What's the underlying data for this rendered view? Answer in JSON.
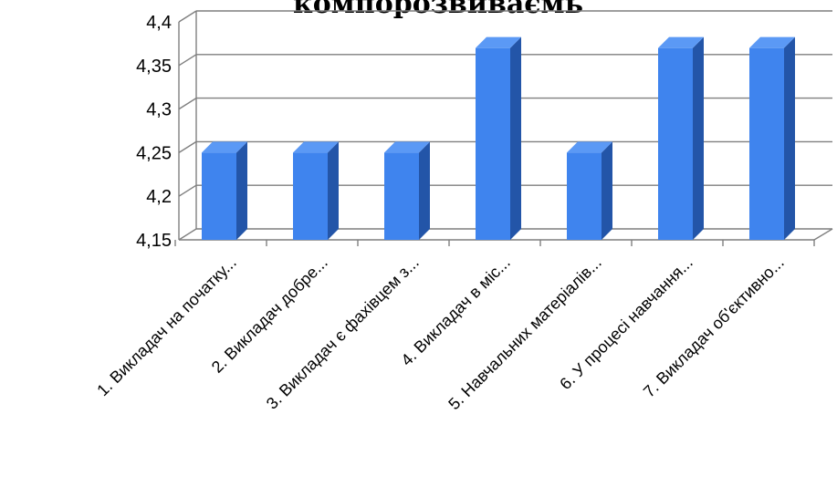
{
  "chart_data": {
    "type": "bar",
    "title": "компорозвиваємь",
    "categories": [
      "1. Викладач на початку...",
      "2. Викладач добре...",
      "3. Викладач є фахівцем з...",
      "4. Викладач в міс...",
      "5. Навчальних матеріалів...",
      "6. У процесі навчання...",
      "7. Викладач об'єктивно..."
    ],
    "values": [
      4.25,
      4.25,
      4.25,
      4.37,
      4.25,
      4.37,
      4.37
    ],
    "yticks": [
      "4,4",
      "4,35",
      "4,3",
      "4,25",
      "4,2",
      "4,15"
    ],
    "ylim": [
      4.15,
      4.4
    ],
    "xlabel": "",
    "ylabel": "",
    "grid": true,
    "legend": "none",
    "colors": {
      "bar_front": "#3f84ee",
      "bar_side": "#2355a8",
      "bar_top": "#5b99f5",
      "grid": "#808080"
    }
  }
}
